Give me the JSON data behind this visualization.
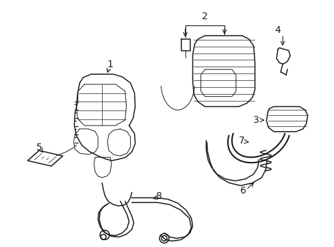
{
  "background_color": "#ffffff",
  "line_color": "#1a1a1a",
  "fig_width": 4.89,
  "fig_height": 3.6,
  "dpi": 100,
  "font_size": 10,
  "lw_main": 1.1,
  "lw_thin": 0.7,
  "lw_thick": 1.5
}
